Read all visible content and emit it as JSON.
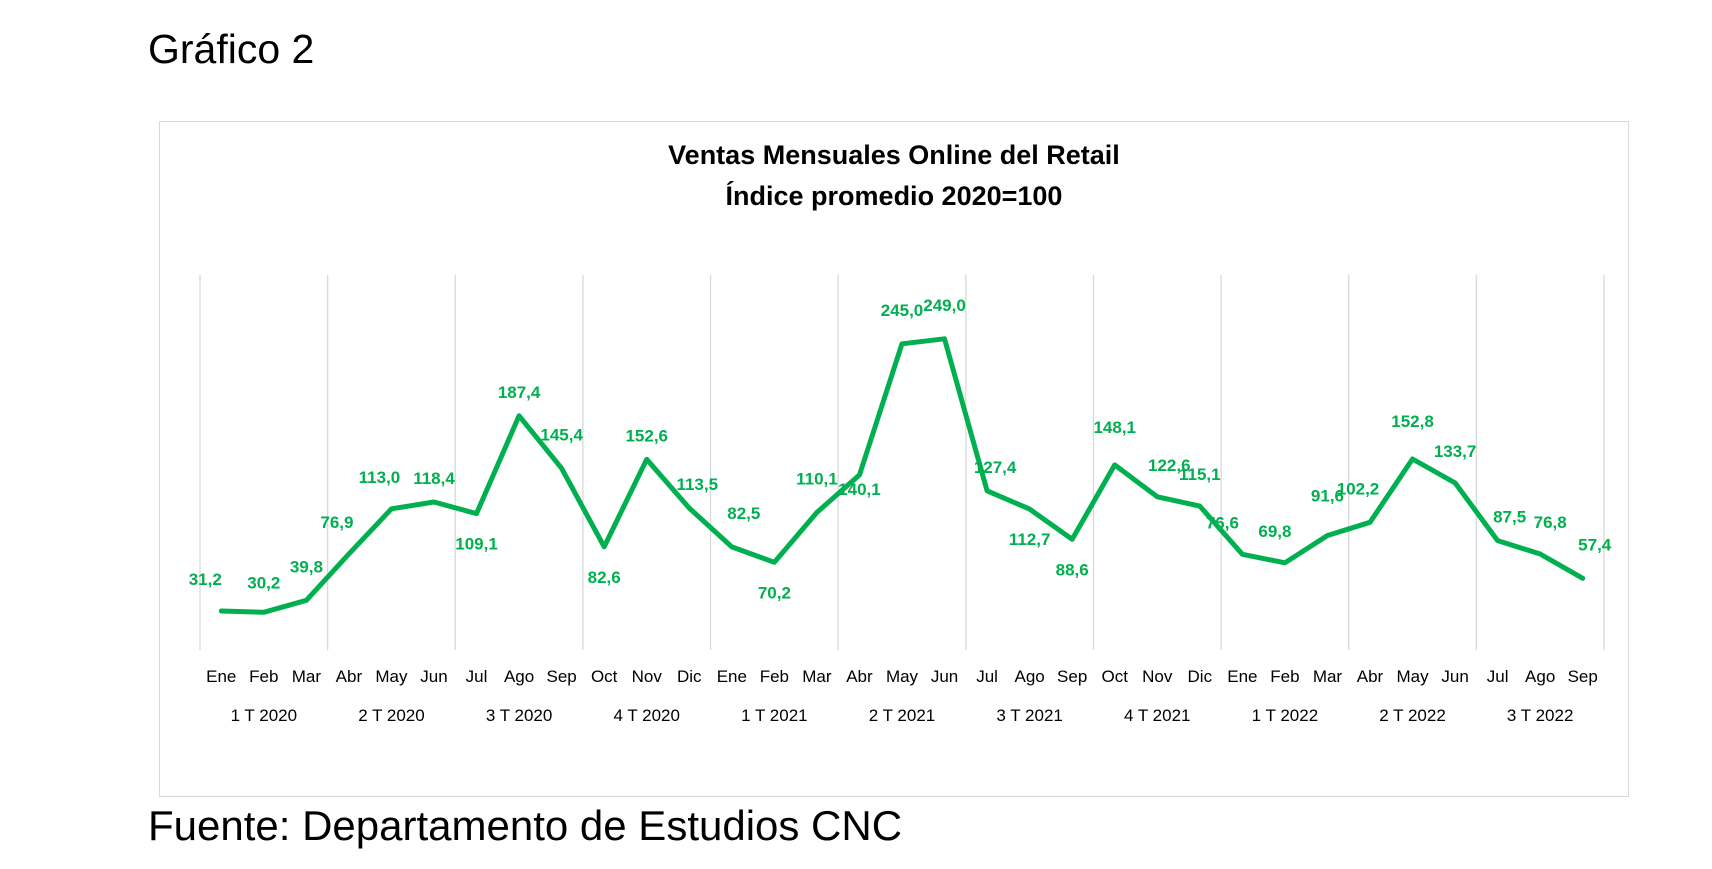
{
  "page": {
    "heading": "Gráfico 2",
    "source": "Fuente: Departamento de Estudios CNC"
  },
  "chart_data": {
    "type": "line",
    "title": "Ventas Mensuales Online del Retail",
    "subtitle": "Índice promedio 2020=100",
    "line_color": "#00b050",
    "grid_color": "#d9d9d9",
    "grid": "vertical quarter separators",
    "legend": "none",
    "ylim": [
      0,
      300
    ],
    "categories": [
      "Ene",
      "Feb",
      "Mar",
      "Abr",
      "May",
      "Jun",
      "Jul",
      "Ago",
      "Sep",
      "Oct",
      "Nov",
      "Dic",
      "Ene",
      "Feb",
      "Mar",
      "Abr",
      "May",
      "Jun",
      "Jul",
      "Ago",
      "Sep",
      "Oct",
      "Nov",
      "Dic",
      "Ene",
      "Feb",
      "Mar",
      "Abr",
      "May",
      "Jun",
      "Jul",
      "Ago",
      "Sep"
    ],
    "groups": [
      "1 T 2020",
      "2 T 2020",
      "3 T 2020",
      "4 T 2020",
      "1 T 2021",
      "2 T 2021",
      "3 T 2021",
      "4 T 2021",
      "1 T 2022",
      "2 T 2022",
      "3 T 2022"
    ],
    "values": [
      31.2,
      30.2,
      39.8,
      76.9,
      113.0,
      118.4,
      109.1,
      187.4,
      145.4,
      82.6,
      152.6,
      113.5,
      82.5,
      70.2,
      110.1,
      140.1,
      245.0,
      249.0,
      127.4,
      112.7,
      88.6,
      148.1,
      122.6,
      115.1,
      76.6,
      69.8,
      91.6,
      102.2,
      152.8,
      133.7,
      87.5,
      76.8,
      57.4
    ],
    "labels": [
      "31,2",
      "30,2",
      "39,8",
      "76,9",
      "113,0",
      "118,4",
      "109,1",
      "187,4",
      "145,4",
      "82,6",
      "152,6",
      "113,5",
      "82,5",
      "70,2",
      "110,1",
      "140,1",
      "245,0",
      "249,0",
      "127,4",
      "112,7",
      "88,6",
      "148,1",
      "122,6",
      "115,1",
      "76,6",
      "69,8",
      "91,6",
      "102,2",
      "152,8",
      "133,7",
      "87,5",
      "76,8",
      "57,4"
    ]
  }
}
